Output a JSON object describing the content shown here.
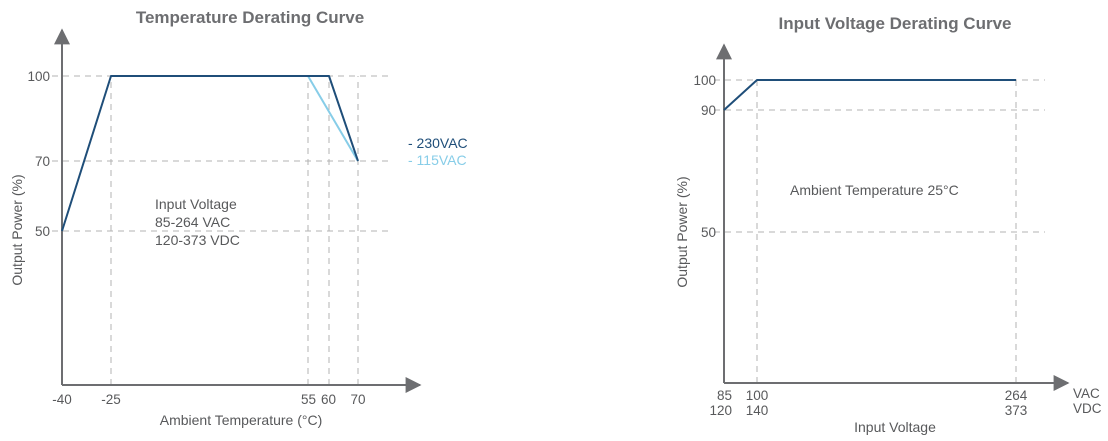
{
  "chart_data": [
    {
      "type": "line",
      "title": "Temperature Derating Curve",
      "xlabel": "Ambient Temperature (°C)",
      "ylabel": "Output Power (%)",
      "xlim": [
        -40,
        75
      ],
      "ylim": [
        0,
        110
      ],
      "x_ticks": [
        -40,
        -25,
        55,
        60,
        70
      ],
      "x_tick_labels": [
        "-40",
        "-25",
        "55",
        "60",
        "70"
      ],
      "y_ticks": [
        50,
        70,
        100
      ],
      "y_tick_labels": [
        "50",
        "70",
        "100"
      ],
      "grid": "dashed at ticks",
      "legend_placement": "right",
      "series": [
        {
          "name": "- 230VAC",
          "color": "#1f4e79",
          "x": [
            -40,
            -25,
            60,
            70
          ],
          "y": [
            50,
            100,
            100,
            70
          ]
        },
        {
          "name": "- 115VAC",
          "color": "#87cde8",
          "x": [
            55,
            70
          ],
          "y": [
            100,
            70
          ]
        }
      ],
      "annotation": [
        "Input Voltage",
        "85-264 VAC",
        "120-373 VDC"
      ]
    },
    {
      "type": "line",
      "title": "Input Voltage Derating Curve",
      "xlabel": "Input Voltage",
      "ylabel": "Output Power (%)",
      "xlim": [
        85,
        280
      ],
      "ylim": [
        0,
        110
      ],
      "x_ticks": [
        85,
        100,
        264
      ],
      "x_tick_labels": [
        "85",
        "100",
        "264"
      ],
      "x_tick_labels_secondary": [
        "120",
        "140",
        "373"
      ],
      "x_units": [
        "VAC",
        "VDC"
      ],
      "y_ticks": [
        50,
        90,
        100
      ],
      "y_tick_labels": [
        "50",
        "90",
        "100"
      ],
      "grid": "dashed at ticks",
      "series": [
        {
          "color": "#1f4e79",
          "x": [
            85,
            100,
            264
          ],
          "y": [
            90,
            100,
            100
          ]
        }
      ],
      "annotation": [
        "Ambient Temperature 25°C"
      ]
    }
  ]
}
